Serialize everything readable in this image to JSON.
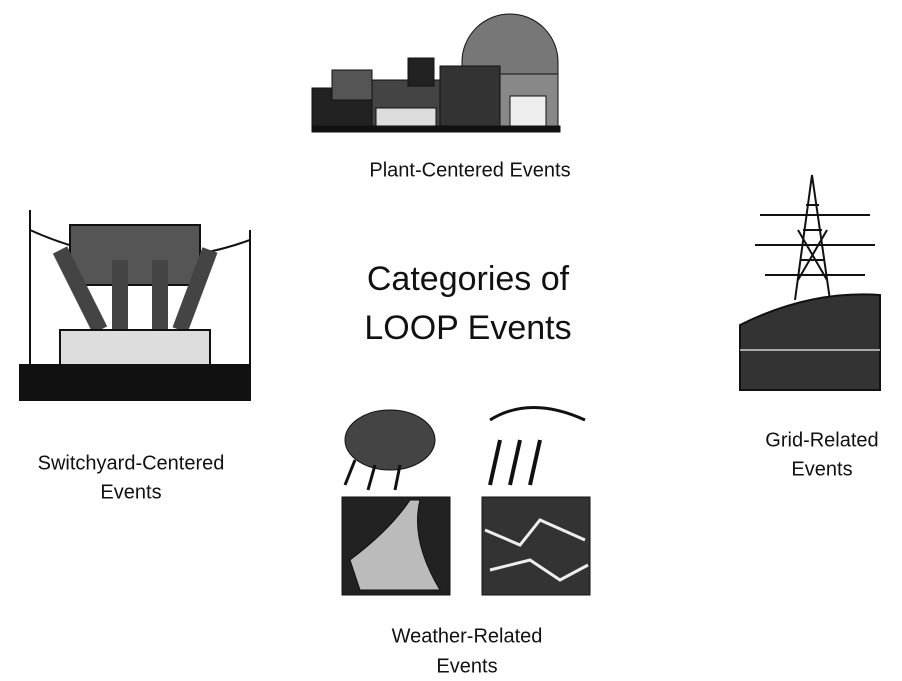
{
  "title": {
    "lines": [
      "Categories of",
      "LOOP Events"
    ]
  },
  "nodes": [
    {
      "label": {
        "lines": [
          "Plant-Centered Events"
        ]
      }
    },
    {
      "label": {
        "lines": [
          "Switchyard-Centered",
          "Events"
        ]
      }
    },
    {
      "label": {
        "lines": [
          "Grid-Related",
          "Events"
        ]
      }
    },
    {
      "label": {
        "lines": [
          "Weather-Related",
          "Events"
        ]
      }
    }
  ]
}
